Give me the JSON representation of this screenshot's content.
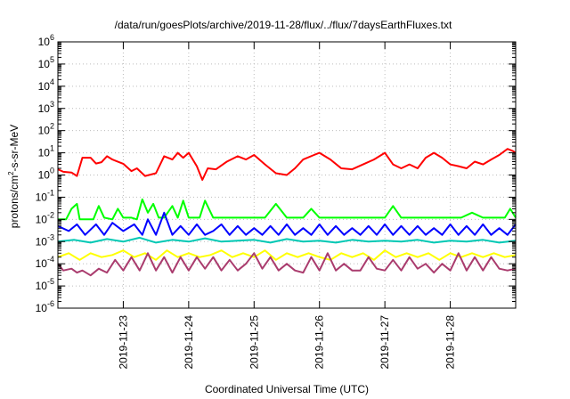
{
  "chart_data": {
    "type": "line",
    "title": "/data/run/goesPlots/archive/2019-11-28/flux/../flux/7daysEarthFluxes.txt",
    "xlabel": "Coordinated Universal Time (UTC)",
    "ylabel": {
      "base": "protons/cm",
      "sup": "2",
      "rest": "-s-sr-MeV"
    },
    "y_scale": "log",
    "ylim": [
      1e-06,
      1000000.0
    ],
    "y_ticks": [
      {
        "v": 1e-06,
        "b": "10",
        "e": "-6"
      },
      {
        "v": 1e-05,
        "b": "10",
        "e": "-5"
      },
      {
        "v": 0.0001,
        "b": "10",
        "e": "-4"
      },
      {
        "v": 0.001,
        "b": "10",
        "e": "-3"
      },
      {
        "v": 0.01,
        "b": "10",
        "e": "-2"
      },
      {
        "v": 0.1,
        "b": "10",
        "e": "-1"
      },
      {
        "v": 1,
        "b": "10",
        "e": "0"
      },
      {
        "v": 10,
        "b": "10",
        "e": "1"
      },
      {
        "v": 100,
        "b": "10",
        "e": "2"
      },
      {
        "v": 1000,
        "b": "10",
        "e": "3"
      },
      {
        "v": 10000,
        "b": "10",
        "e": "4"
      },
      {
        "v": 100000,
        "b": "10",
        "e": "5"
      },
      {
        "v": 1000000,
        "b": "10",
        "e": "6"
      }
    ],
    "xlim": [
      "2019-11-22T00:00",
      "2019-11-29T00:00"
    ],
    "x_ticks": [
      "2019-11-23",
      "2019-11-24",
      "2019-11-25",
      "2019-11-26",
      "2019-11-27",
      "2019-11-28"
    ],
    "grid": true,
    "legend": false,
    "series": [
      {
        "color": "#ff0000",
        "x": [
          "2019-11-22T00:00",
          "2019-11-22T02:00",
          "2019-11-22T05:00",
          "2019-11-22T07:00",
          "2019-11-22T09:00",
          "2019-11-22T12:00",
          "2019-11-22T14:00",
          "2019-11-22T16:00",
          "2019-11-22T18:00",
          "2019-11-22T20:00",
          "2019-11-23T00:00",
          "2019-11-23T03:00",
          "2019-11-23T05:00",
          "2019-11-23T08:00",
          "2019-11-23T12:00",
          "2019-11-23T15:00",
          "2019-11-23T18:00",
          "2019-11-23T20:00",
          "2019-11-23T22:00",
          "2019-11-24T00:00",
          "2019-11-24T03:00",
          "2019-11-24T05:00",
          "2019-11-24T07:00",
          "2019-11-24T10:00",
          "2019-11-24T14:00",
          "2019-11-24T18:00",
          "2019-11-24T21:00",
          "2019-11-25T00:00",
          "2019-11-25T04:00",
          "2019-11-25T08:00",
          "2019-11-25T12:00",
          "2019-11-25T15:00",
          "2019-11-25T18:00",
          "2019-11-25T22:00",
          "2019-11-26T00:00",
          "2019-11-26T04:00",
          "2019-11-26T08:00",
          "2019-11-26T12:00",
          "2019-11-26T16:00",
          "2019-11-26T20:00",
          "2019-11-27T00:00",
          "2019-11-27T03:00",
          "2019-11-27T06:00",
          "2019-11-27T09:00",
          "2019-11-27T12:00",
          "2019-11-27T15:00",
          "2019-11-27T18:00",
          "2019-11-27T21:00",
          "2019-11-28T00:00",
          "2019-11-28T03:00",
          "2019-11-28T06:00",
          "2019-11-28T09:00",
          "2019-11-28T12:00",
          "2019-11-28T15:00",
          "2019-11-28T18:00",
          "2019-11-28T21:00",
          "2019-11-28T23:00",
          "2019-11-29T00:00"
        ],
        "y": [
          1.8,
          1.4,
          1.3,
          0.9,
          6,
          6,
          3.3,
          3.8,
          7,
          5,
          3.2,
          1.5,
          2,
          0.9,
          1.2,
          7,
          5,
          10,
          6,
          10,
          2.5,
          0.6,
          2,
          1.8,
          4,
          7,
          5,
          8,
          3,
          1.2,
          1,
          2,
          5,
          8,
          10,
          5,
          2,
          1.8,
          3,
          5,
          10,
          3,
          2,
          3,
          2,
          6,
          10,
          6,
          3,
          2.5,
          2,
          4,
          3,
          5,
          8,
          15,
          12,
          10
        ]
      },
      {
        "color": "#00ff00",
        "x": [
          "2019-11-22T00:00",
          "2019-11-22T03:00",
          "2019-11-22T05:00",
          "2019-11-22T07:00",
          "2019-11-22T08:00",
          "2019-11-22T10:00",
          "2019-11-22T13:00",
          "2019-11-22T15:00",
          "2019-11-22T17:00",
          "2019-11-22T20:00",
          "2019-11-22T22:00",
          "2019-11-23T00:00",
          "2019-11-23T03:00",
          "2019-11-23T05:00",
          "2019-11-23T07:00",
          "2019-11-23T09:00",
          "2019-11-23T11:00",
          "2019-11-23T13:00",
          "2019-11-23T15:00",
          "2019-11-23T18:00",
          "2019-11-23T20:00",
          "2019-11-23T22:00",
          "2019-11-24T00:00",
          "2019-11-24T04:00",
          "2019-11-24T06:00",
          "2019-11-24T09:00",
          "2019-11-24T12:00",
          "2019-11-24T16:00",
          "2019-11-24T20:00",
          "2019-11-25T00:00",
          "2019-11-25T04:00",
          "2019-11-25T08:00",
          "2019-11-25T12:00",
          "2019-11-25T15:00",
          "2019-11-25T18:00",
          "2019-11-25T21:00",
          "2019-11-26T00:00",
          "2019-11-26T04:00",
          "2019-11-26T08:00",
          "2019-11-26T12:00",
          "2019-11-26T16:00",
          "2019-11-26T20:00",
          "2019-11-27T00:00",
          "2019-11-27T03:00",
          "2019-11-27T06:00",
          "2019-11-27T09:00",
          "2019-11-27T12:00",
          "2019-11-27T16:00",
          "2019-11-27T20:00",
          "2019-11-28T00:00",
          "2019-11-28T04:00",
          "2019-11-28T08:00",
          "2019-11-28T12:00",
          "2019-11-28T16:00",
          "2019-11-28T20:00",
          "2019-11-28T22:00",
          "2019-11-29T00:00"
        ],
        "y": [
          0.01,
          0.01,
          0.03,
          0.05,
          0.01,
          0.01,
          0.01,
          0.04,
          0.012,
          0.01,
          0.03,
          0.012,
          0.012,
          0.01,
          0.08,
          0.02,
          0.05,
          0.012,
          0.012,
          0.04,
          0.012,
          0.07,
          0.012,
          0.012,
          0.07,
          0.012,
          0.012,
          0.012,
          0.012,
          0.012,
          0.012,
          0.05,
          0.012,
          0.012,
          0.012,
          0.03,
          0.012,
          0.012,
          0.012,
          0.012,
          0.012,
          0.012,
          0.012,
          0.04,
          0.012,
          0.012,
          0.012,
          0.012,
          0.012,
          0.012,
          0.012,
          0.02,
          0.012,
          0.012,
          0.012,
          0.03,
          0.012
        ]
      },
      {
        "color": "#0000ff",
        "x": [
          "2019-11-22T00:00",
          "2019-11-22T04:00",
          "2019-11-22T07:00",
          "2019-11-22T10:00",
          "2019-11-22T14:00",
          "2019-11-22T17:00",
          "2019-11-22T20:00",
          "2019-11-23T00:00",
          "2019-11-23T04:00",
          "2019-11-23T07:00",
          "2019-11-23T09:00",
          "2019-11-23T12:00",
          "2019-11-23T15:00",
          "2019-11-23T18:00",
          "2019-11-23T21:00",
          "2019-11-24T00:00",
          "2019-11-24T03:00",
          "2019-11-24T06:00",
          "2019-11-24T09:00",
          "2019-11-24T12:00",
          "2019-11-24T15:00",
          "2019-11-24T18:00",
          "2019-11-24T21:00",
          "2019-11-25T00:00",
          "2019-11-25T03:00",
          "2019-11-25T06:00",
          "2019-11-25T09:00",
          "2019-11-25T12:00",
          "2019-11-25T15:00",
          "2019-11-25T18:00",
          "2019-11-25T21:00",
          "2019-11-26T00:00",
          "2019-11-26T03:00",
          "2019-11-26T06:00",
          "2019-11-26T09:00",
          "2019-11-26T12:00",
          "2019-11-26T15:00",
          "2019-11-26T18:00",
          "2019-11-26T21:00",
          "2019-11-27T00:00",
          "2019-11-27T03:00",
          "2019-11-27T06:00",
          "2019-11-27T09:00",
          "2019-11-27T12:00",
          "2019-11-27T15:00",
          "2019-11-27T18:00",
          "2019-11-27T21:00",
          "2019-11-28T00:00",
          "2019-11-28T03:00",
          "2019-11-28T06:00",
          "2019-11-28T09:00",
          "2019-11-28T12:00",
          "2019-11-28T15:00",
          "2019-11-28T18:00",
          "2019-11-28T21:00",
          "2019-11-29T00:00"
        ],
        "y": [
          0.005,
          0.003,
          0.006,
          0.002,
          0.006,
          0.002,
          0.007,
          0.003,
          0.006,
          0.002,
          0.01,
          0.002,
          0.02,
          0.002,
          0.005,
          0.002,
          0.006,
          0.002,
          0.003,
          0.006,
          0.002,
          0.005,
          0.002,
          0.004,
          0.002,
          0.005,
          0.002,
          0.006,
          0.002,
          0.004,
          0.002,
          0.006,
          0.002,
          0.005,
          0.002,
          0.004,
          0.002,
          0.005,
          0.002,
          0.006,
          0.002,
          0.005,
          0.002,
          0.005,
          0.002,
          0.004,
          0.002,
          0.006,
          0.002,
          0.005,
          0.002,
          0.006,
          0.002,
          0.004,
          0.002,
          0.006
        ]
      },
      {
        "color": "#00c8b4",
        "x": [
          "2019-11-22T00:00",
          "2019-11-22T06:00",
          "2019-11-22T12:00",
          "2019-11-22T18:00",
          "2019-11-23T00:00",
          "2019-11-23T06:00",
          "2019-11-23T12:00",
          "2019-11-23T18:00",
          "2019-11-24T00:00",
          "2019-11-24T06:00",
          "2019-11-24T12:00",
          "2019-11-24T18:00",
          "2019-11-25T00:00",
          "2019-11-25T06:00",
          "2019-11-25T12:00",
          "2019-11-25T18:00",
          "2019-11-26T00:00",
          "2019-11-26T06:00",
          "2019-11-26T12:00",
          "2019-11-26T18:00",
          "2019-11-27T00:00",
          "2019-11-27T06:00",
          "2019-11-27T12:00",
          "2019-11-27T18:00",
          "2019-11-28T00:00",
          "2019-11-28T06:00",
          "2019-11-28T12:00",
          "2019-11-28T18:00",
          "2019-11-29T00:00"
        ],
        "y": [
          0.001,
          0.0012,
          0.0009,
          0.0013,
          0.001,
          0.0015,
          0.0009,
          0.0012,
          0.001,
          0.0014,
          0.001,
          0.0011,
          0.0012,
          0.0009,
          0.0013,
          0.001,
          0.0011,
          0.0009,
          0.0012,
          0.001,
          0.0011,
          0.001,
          0.0012,
          0.0009,
          0.0011,
          0.001,
          0.0012,
          0.0009,
          0.0011
        ]
      },
      {
        "color": "#ffff00",
        "x": [
          "2019-11-22T00:00",
          "2019-11-22T04:00",
          "2019-11-22T08:00",
          "2019-11-22T12:00",
          "2019-11-22T16:00",
          "2019-11-22T20:00",
          "2019-11-23T00:00",
          "2019-11-23T04:00",
          "2019-11-23T08:00",
          "2019-11-23T12:00",
          "2019-11-23T16:00",
          "2019-11-23T20:00",
          "2019-11-24T00:00",
          "2019-11-24T04:00",
          "2019-11-24T08:00",
          "2019-11-24T12:00",
          "2019-11-24T16:00",
          "2019-11-24T20:00",
          "2019-11-25T00:00",
          "2019-11-25T04:00",
          "2019-11-25T08:00",
          "2019-11-25T12:00",
          "2019-11-25T16:00",
          "2019-11-25T20:00",
          "2019-11-26T00:00",
          "2019-11-26T04:00",
          "2019-11-26T08:00",
          "2019-11-26T12:00",
          "2019-11-26T16:00",
          "2019-11-26T20:00",
          "2019-11-27T00:00",
          "2019-11-27T04:00",
          "2019-11-27T08:00",
          "2019-11-27T12:00",
          "2019-11-27T16:00",
          "2019-11-27T20:00",
          "2019-11-28T00:00",
          "2019-11-28T04:00",
          "2019-11-28T08:00",
          "2019-11-28T12:00",
          "2019-11-28T16:00",
          "2019-11-28T20:00",
          "2019-11-29T00:00"
        ],
        "y": [
          0.0002,
          0.0003,
          0.00015,
          0.0003,
          0.0002,
          0.00025,
          0.0004,
          0.0002,
          0.0003,
          0.00015,
          0.0004,
          0.0002,
          0.0003,
          0.0002,
          0.00025,
          0.0004,
          0.0002,
          0.0003,
          0.0002,
          0.0004,
          0.00015,
          0.0003,
          0.0002,
          0.0003,
          0.0002,
          0.00015,
          0.0003,
          0.0002,
          0.0003,
          0.00015,
          0.0004,
          0.0002,
          0.0003,
          0.0002,
          0.0003,
          0.00015,
          0.0003,
          0.0002,
          0.0003,
          0.0002,
          0.0003,
          0.0002,
          0.00025
        ]
      },
      {
        "color": "#aa3c6e",
        "x": [
          "2019-11-22T00:00",
          "2019-11-22T02:00",
          "2019-11-22T05:00",
          "2019-11-22T07:00",
          "2019-11-22T09:00",
          "2019-11-22T12:00",
          "2019-11-22T15:00",
          "2019-11-22T18:00",
          "2019-11-22T21:00",
          "2019-11-23T00:00",
          "2019-11-23T03:00",
          "2019-11-23T06:00",
          "2019-11-23T09:00",
          "2019-11-23T12:00",
          "2019-11-23T15:00",
          "2019-11-23T18:00",
          "2019-11-23T21:00",
          "2019-11-24T00:00",
          "2019-11-24T03:00",
          "2019-11-24T06:00",
          "2019-11-24T09:00",
          "2019-11-24T12:00",
          "2019-11-24T15:00",
          "2019-11-24T18:00",
          "2019-11-24T21:00",
          "2019-11-25T00:00",
          "2019-11-25T03:00",
          "2019-11-25T06:00",
          "2019-11-25T09:00",
          "2019-11-25T12:00",
          "2019-11-25T15:00",
          "2019-11-25T18:00",
          "2019-11-25T21:00",
          "2019-11-26T00:00",
          "2019-11-26T03:00",
          "2019-11-26T06:00",
          "2019-11-26T09:00",
          "2019-11-26T12:00",
          "2019-11-26T15:00",
          "2019-11-26T18:00",
          "2019-11-26T21:00",
          "2019-11-27T00:00",
          "2019-11-27T03:00",
          "2019-11-27T06:00",
          "2019-11-27T09:00",
          "2019-11-27T12:00",
          "2019-11-27T15:00",
          "2019-11-27T18:00",
          "2019-11-27T21:00",
          "2019-11-28T00:00",
          "2019-11-28T03:00",
          "2019-11-28T06:00",
          "2019-11-28T09:00",
          "2019-11-28T12:00",
          "2019-11-28T15:00",
          "2019-11-28T18:00",
          "2019-11-28T21:00",
          "2019-11-29T00:00"
        ],
        "y": [
          0.0001,
          5e-05,
          6e-05,
          4e-05,
          5e-05,
          3e-05,
          6e-05,
          4e-05,
          0.00015,
          5e-05,
          0.0002,
          5e-05,
          0.0003,
          5e-05,
          0.0002,
          4e-05,
          0.0002,
          5e-05,
          0.0002,
          6e-05,
          0.0002,
          5e-05,
          0.00015,
          5e-05,
          0.0001,
          0.0003,
          6e-05,
          0.0002,
          5e-05,
          0.0001,
          5e-05,
          4e-05,
          0.0002,
          5e-05,
          0.0003,
          5e-05,
          0.0001,
          5e-05,
          5e-05,
          0.0002,
          6e-05,
          5e-05,
          0.00015,
          5e-05,
          0.0002,
          6e-05,
          0.0001,
          4e-05,
          0.0001,
          5e-05,
          0.0003,
          5e-05,
          0.0002,
          5e-05,
          0.0002,
          6e-05,
          5e-05,
          6e-05
        ]
      }
    ]
  }
}
